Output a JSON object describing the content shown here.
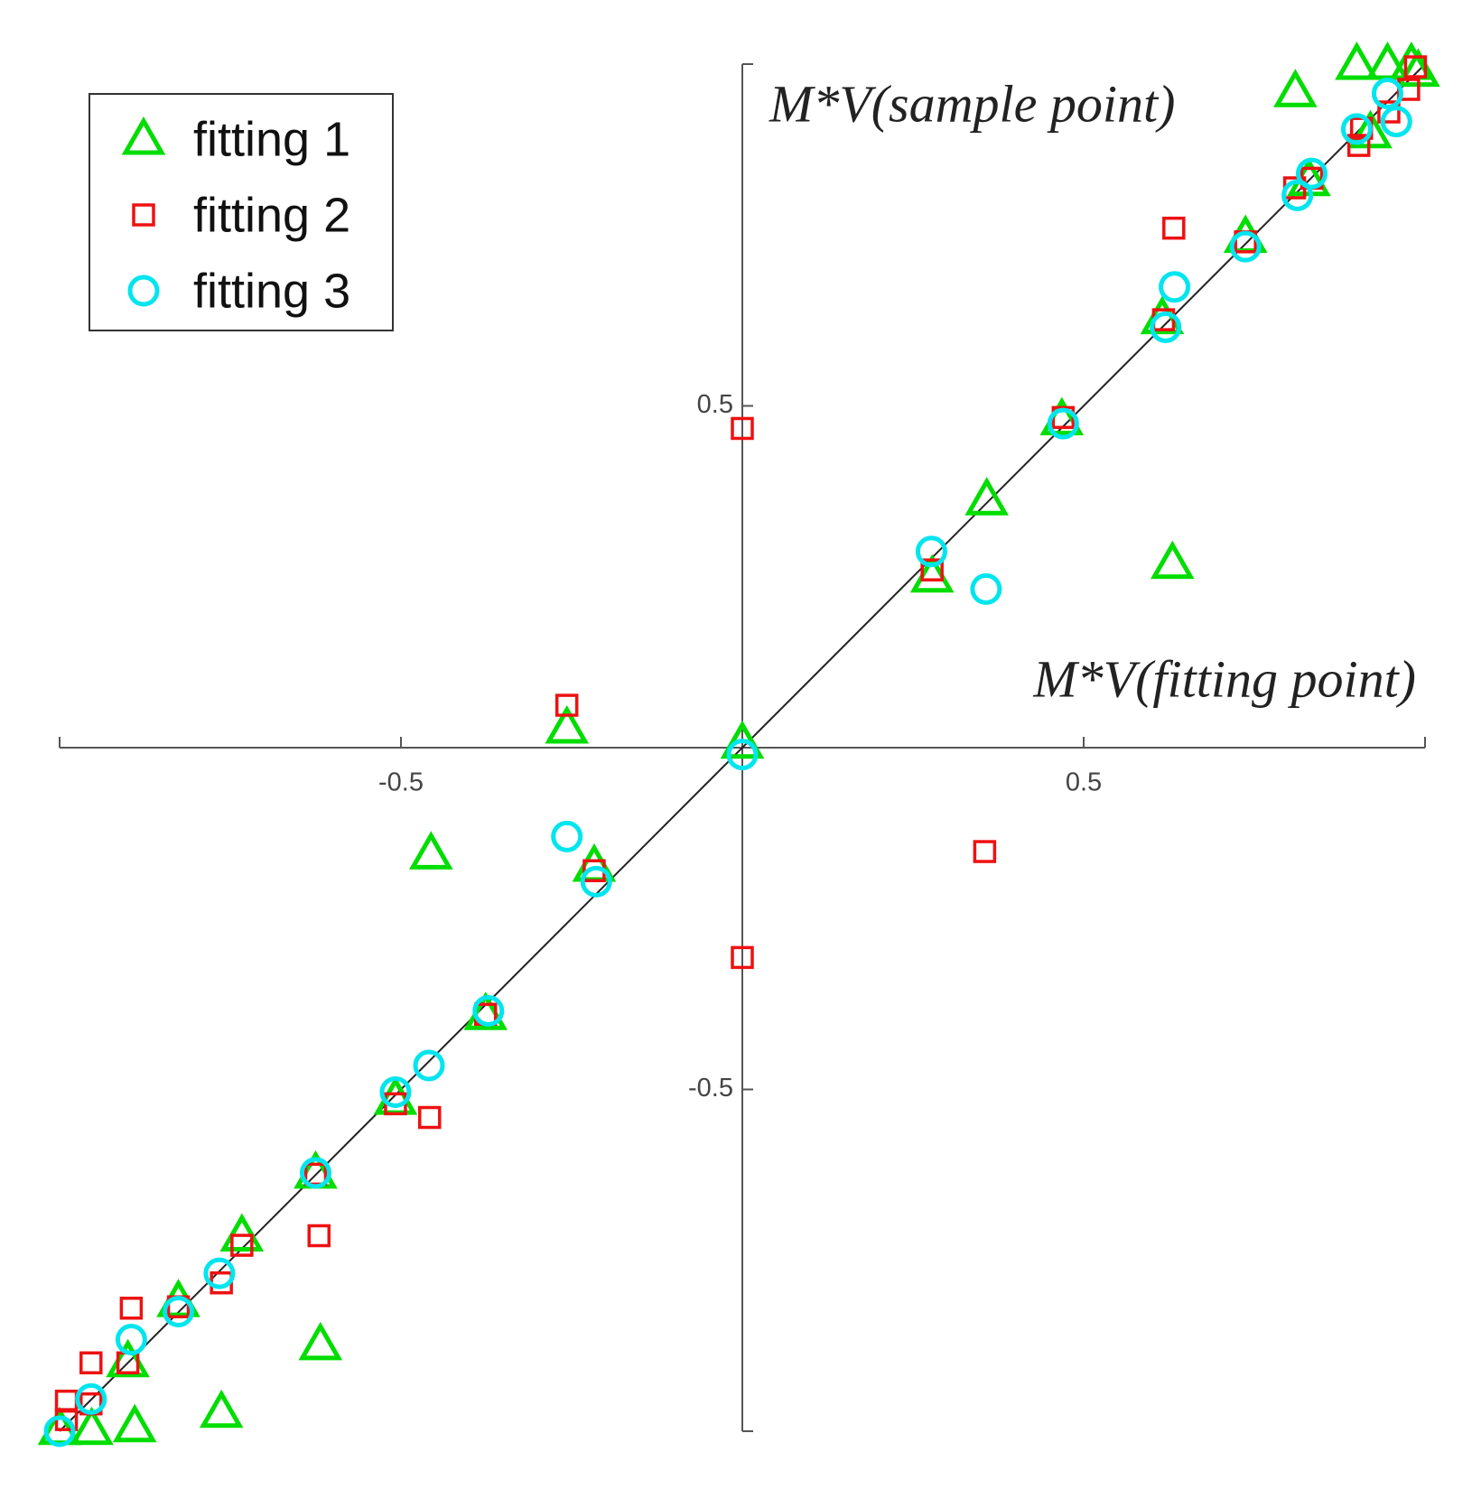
{
  "chart_data": {
    "type": "scatter",
    "xlabel": "M*V(fitting point)",
    "ylabel": "M*V(sample point)",
    "xlim": [
      -1,
      1
    ],
    "ylim": [
      -1,
      1
    ],
    "xticks": [
      -0.5,
      0.5
    ],
    "yticks": [
      -0.5,
      0.5
    ],
    "series": [
      {
        "name": "fitting 1",
        "color": "#00dd00",
        "marker": "triangle",
        "x": [
          0.9,
          0.945,
          0.98,
          0.99,
          0.81,
          0.92,
          0.83,
          0.737,
          0.615,
          0.468,
          0.358,
          0.63,
          0.278,
          -0.257,
          0,
          -0.217,
          -0.456,
          -0.376,
          -0.508,
          -0.625,
          -0.618,
          -0.733,
          -0.826,
          -0.9,
          -0.763,
          -0.89,
          -0.953,
          -1.0
        ],
        "values": [
          1.0,
          1.0,
          1.0,
          0.99,
          0.96,
          0.9,
          0.83,
          0.747,
          0.628,
          0.48,
          0.363,
          0.27,
          0.25,
          0.029,
          0.007,
          -0.173,
          -0.155,
          -0.39,
          -0.514,
          -0.622,
          -0.873,
          -0.714,
          -0.81,
          -0.898,
          -0.972,
          -0.993,
          -0.997,
          -0.997
        ]
      },
      {
        "name": "fitting 2",
        "color": "#ee1111",
        "marker": "square",
        "x": [
          0.986,
          0.976,
          0.947,
          0.903,
          0.907,
          0.834,
          0.809,
          0.737,
          0.632,
          0.617,
          0.47,
          0,
          0.278,
          0.355,
          -0.257,
          -0.217,
          0,
          -0.376,
          -0.508,
          -0.458,
          -0.625,
          -0.62,
          -0.733,
          -0.763,
          -0.826,
          -0.895,
          -0.9,
          -0.954,
          -0.954,
          -0.99,
          -0.99
        ],
        "values": [
          0.996,
          0.963,
          0.93,
          0.881,
          0.906,
          0.833,
          0.819,
          0.74,
          0.76,
          0.626,
          0.483,
          0.467,
          0.26,
          -0.152,
          0.062,
          -0.18,
          -0.307,
          -0.39,
          -0.521,
          -0.541,
          -0.624,
          -0.714,
          -0.728,
          -0.783,
          -0.818,
          -0.82,
          -0.9,
          -0.9,
          -0.96,
          -0.956,
          -0.983
        ]
      },
      {
        "name": "fitting 3",
        "color": "#00e5ee",
        "marker": "circle",
        "x": [
          0.958,
          0.945,
          0.9,
          0.813,
          0.834,
          0.737,
          0.633,
          0.62,
          0.47,
          0.277,
          0.357,
          0,
          -0.257,
          -0.214,
          -0.372,
          -0.459,
          -0.508,
          -0.625,
          -0.766,
          -0.826,
          -0.895,
          -0.954,
          -1.0
        ],
        "values": [
          0.916,
          0.957,
          0.905,
          0.808,
          0.84,
          0.733,
          0.674,
          0.615,
          0.474,
          0.287,
          0.232,
          -0.01,
          -0.13,
          -0.196,
          -0.385,
          -0.465,
          -0.504,
          -0.622,
          -0.769,
          -0.825,
          -0.866,
          -0.953,
          -1.0
        ]
      }
    ]
  }
}
